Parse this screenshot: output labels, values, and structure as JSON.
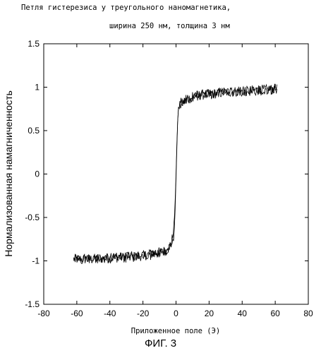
{
  "page": {
    "title_line1": "Петля гистерезиса у треугольного наномагнетика,",
    "title_line2": "ширина 250 нм, толщина 3 нм",
    "figure_caption": "ФИГ. 3"
  },
  "chart_data": {
    "type": "line",
    "title": "Петля гистерезиса у треугольного наномагнетика, ширина 250 нм, толщина 3 нм",
    "xlabel": "Приложенное поле (Э)",
    "ylabel": "Нормализованная намагниченность",
    "xlim": [
      -80,
      80
    ],
    "ylim": [
      -1.5,
      1.5
    ],
    "xticks": [
      -80,
      -60,
      -40,
      -20,
      0,
      20,
      40,
      60,
      80
    ],
    "yticks": [
      -1.5,
      -1,
      -0.5,
      0,
      0.5,
      1,
      1.5
    ],
    "xtick_labels": [
      "-80",
      "-60",
      "-40",
      "-20",
      "0",
      "20",
      "40",
      "60",
      "80"
    ],
    "ytick_labels": [
      "-1.5",
      "-1",
      "-0.5",
      "0",
      "0.5",
      "1",
      "1.5"
    ],
    "grid": false,
    "series": [
      {
        "x": [
          -62,
          -55,
          -50,
          -45,
          -40,
          -35,
          -30,
          -25,
          -20,
          -15,
          -12,
          -10,
          -8,
          -6,
          -5,
          -4,
          -3,
          -2,
          -1,
          -0.5,
          0,
          0.5,
          1,
          1.5,
          2,
          3,
          4,
          5,
          6,
          8,
          10,
          12,
          15,
          20,
          25,
          30,
          35,
          40,
          45,
          50,
          55,
          60,
          61
        ],
        "y": [
          -0.98,
          -0.98,
          -0.98,
          -0.97,
          -0.97,
          -0.96,
          -0.96,
          -0.95,
          -0.94,
          -0.92,
          -0.91,
          -0.9,
          -0.89,
          -0.88,
          -0.86,
          -0.84,
          -0.8,
          -0.72,
          -0.5,
          -0.3,
          0.0,
          0.35,
          0.6,
          0.72,
          0.77,
          0.8,
          0.82,
          0.84,
          0.85,
          0.87,
          0.88,
          0.9,
          0.91,
          0.92,
          0.93,
          0.94,
          0.95,
          0.95,
          0.96,
          0.97,
          0.97,
          0.98,
          0.98
        ]
      },
      {
        "x": [
          61,
          60,
          55,
          50,
          45,
          40,
          35,
          30,
          25,
          20,
          15,
          12,
          10,
          8,
          6,
          5,
          4,
          3,
          2,
          1.5,
          1,
          0.5,
          0,
          -0.5,
          -1,
          -1.5,
          -2,
          -3,
          -4,
          -5,
          -6,
          -8,
          -10,
          -12,
          -15,
          -20,
          -25,
          -30,
          -35,
          -40,
          -45,
          -50,
          -55,
          -62
        ],
        "y": [
          0.98,
          0.98,
          0.97,
          0.97,
          0.96,
          0.95,
          0.95,
          0.94,
          0.93,
          0.92,
          0.91,
          0.9,
          0.89,
          0.88,
          0.87,
          0.86,
          0.84,
          0.82,
          0.78,
          0.72,
          0.6,
          0.3,
          -0.05,
          -0.4,
          -0.62,
          -0.72,
          -0.78,
          -0.82,
          -0.85,
          -0.87,
          -0.88,
          -0.9,
          -0.91,
          -0.92,
          -0.93,
          -0.94,
          -0.95,
          -0.96,
          -0.96,
          -0.97,
          -0.97,
          -0.98,
          -0.98,
          -0.98
        ]
      }
    ]
  }
}
